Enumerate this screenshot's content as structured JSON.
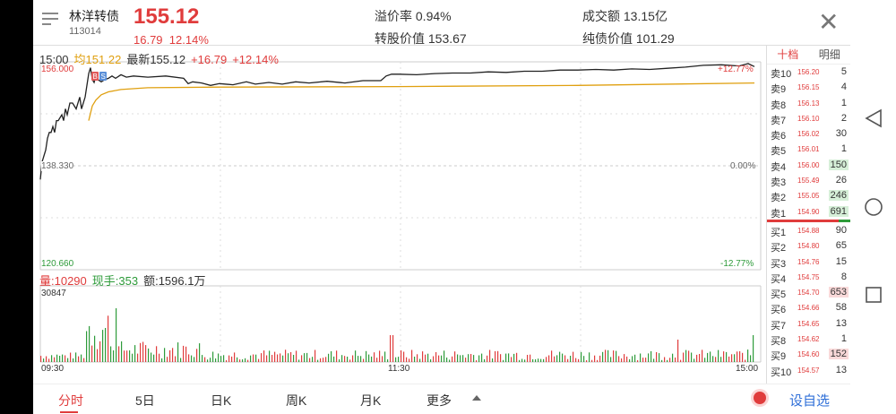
{
  "header": {
    "name": "林洋转债",
    "code": "113014",
    "price": "155.12",
    "change": "16.79",
    "change_pct": "12.14%",
    "premium_label": "溢价率",
    "premium": "0.94%",
    "turnover_label": "成交额",
    "turnover": "13.15亿",
    "conv_value_label": "转股价值",
    "conv_value": "153.67",
    "bond_value_label": "纯债价值",
    "bond_value": "101.29"
  },
  "chart": {
    "info_time": "15:00",
    "info_avg": "均151.22",
    "info_last": "最新155.12",
    "info_chg": "+16.79",
    "info_pct": "+12.14%",
    "y_high": "156.000",
    "y_mid": "138.330",
    "y_low": "120.660",
    "pct_high": "+12.77%",
    "pct_mid": "0.00%",
    "pct_low": "-12.77%",
    "vol_label": "量:10290",
    "cur_label": "现手:353",
    "amt_label": "额:1596.1万",
    "vol_max": "30847",
    "t_start": "09:30",
    "t_mid": "11:30",
    "t_end": "15:00",
    "marker_b": "B",
    "marker_s": "S"
  },
  "depth": {
    "tab_active": "十档",
    "tab_detail": "明细",
    "asks": [
      {
        "label": "卖10",
        "price": "156.20",
        "vol": "5"
      },
      {
        "label": "卖9",
        "price": "156.15",
        "vol": "4"
      },
      {
        "label": "卖8",
        "price": "156.13",
        "vol": "1"
      },
      {
        "label": "卖7",
        "price": "156.10",
        "vol": "2"
      },
      {
        "label": "卖6",
        "price": "156.02",
        "vol": "30"
      },
      {
        "label": "卖5",
        "price": "156.01",
        "vol": "1"
      },
      {
        "label": "卖4",
        "price": "156.00",
        "vol": "150"
      },
      {
        "label": "卖3",
        "price": "155.49",
        "vol": "26"
      },
      {
        "label": "卖2",
        "price": "155.05",
        "vol": "246"
      },
      {
        "label": "卖1",
        "price": "154.90",
        "vol": "691"
      }
    ],
    "bids": [
      {
        "label": "买1",
        "price": "154.88",
        "vol": "90"
      },
      {
        "label": "买2",
        "price": "154.80",
        "vol": "65"
      },
      {
        "label": "买3",
        "price": "154.76",
        "vol": "15"
      },
      {
        "label": "买4",
        "price": "154.75",
        "vol": "8"
      },
      {
        "label": "买5",
        "price": "154.70",
        "vol": "653"
      },
      {
        "label": "买6",
        "price": "154.66",
        "vol": "58"
      },
      {
        "label": "买7",
        "price": "154.65",
        "vol": "13"
      },
      {
        "label": "买8",
        "price": "154.62",
        "vol": "1"
      },
      {
        "label": "买9",
        "price": "154.60",
        "vol": "152"
      },
      {
        "label": "买10",
        "price": "154.57",
        "vol": "13"
      }
    ]
  },
  "tabs": {
    "fenshi": "分时",
    "five_day": "5日",
    "day_k": "日K",
    "week_k": "周K",
    "month_k": "月K",
    "more": "更多",
    "self_select": "设自选"
  },
  "colors": {
    "up": "#e03c3c",
    "down": "#2e9b3a",
    "avg_line": "#e0a010",
    "price_line": "#222222"
  }
}
